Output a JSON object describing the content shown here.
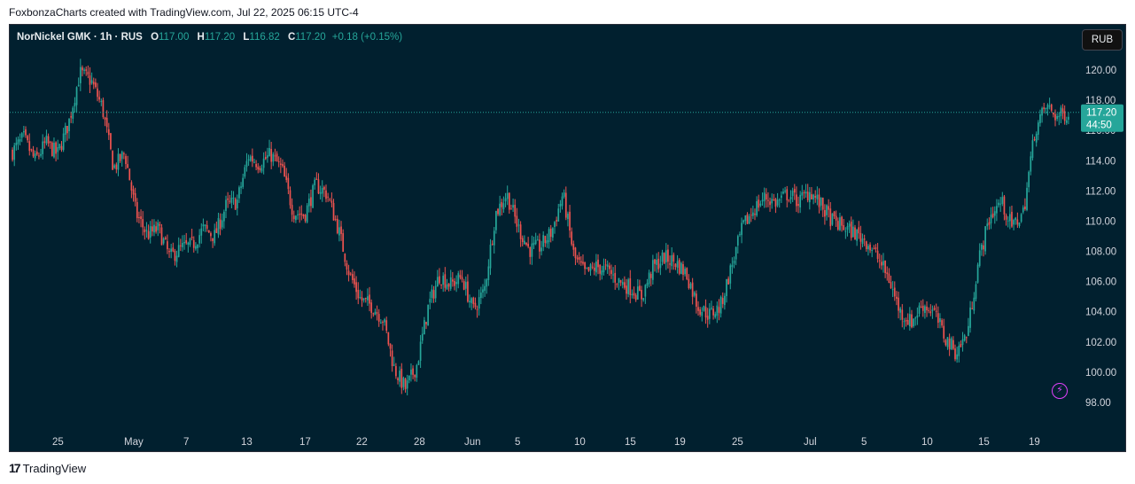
{
  "attribution": "FoxbonzaCharts created with TradingView.com, Jul 22, 2025 06:15 UTC-4",
  "legend": {
    "symbol": "NorNickel GMK · 1h · RUS",
    "open_label": "O",
    "open": "117.00",
    "high_label": "H",
    "high": "117.20",
    "low_label": "L",
    "low": "116.82",
    "close_label": "C",
    "close": "117.20",
    "change": "+0.18 (+0.15%)"
  },
  "currency_button": "RUB",
  "last_price": {
    "price": "117.20",
    "countdown": "44:50"
  },
  "footer": {
    "logo_mark": "17",
    "brand": "TradingView"
  },
  "colors": {
    "up": "#26a69a",
    "down": "#ef5350",
    "background": "#01202f",
    "price_tag": "#26a69a",
    "bolt": "#e040fb"
  },
  "chart_data": {
    "type": "candlestick",
    "timeframe": "1h",
    "currency": "RUB",
    "ylim": [
      97,
      121.5
    ],
    "y_ticks": [
      "98.00",
      "100.00",
      "102.00",
      "104.00",
      "106.00",
      "108.00",
      "110.00",
      "112.00",
      "114.00",
      "116.00",
      "118.00",
      "120.00"
    ],
    "x_ticks": [
      "25",
      "May",
      "7",
      "13",
      "17",
      "22",
      "28",
      "Jun",
      "5",
      "10",
      "15",
      "19",
      "25",
      "Jul",
      "5",
      "10",
      "15",
      "19"
    ],
    "last_price": 117.2,
    "series": [
      {
        "x": "Apr 21",
        "y": 114.6
      },
      {
        "x": "Apr 22",
        "y": 115.5
      },
      {
        "x": "Apr 23",
        "y": 114.0
      },
      {
        "x": "Apr 24",
        "y": 115.2
      },
      {
        "x": "Apr 25",
        "y": 114.4
      },
      {
        "x": "Apr 26",
        "y": 116.5
      },
      {
        "x": "Apr 27",
        "y": 119.8
      },
      {
        "x": "Apr 28",
        "y": 119.3
      },
      {
        "x": "Apr 29",
        "y": 117.5
      },
      {
        "x": "Apr 30",
        "y": 113.5
      },
      {
        "x": "May 1",
        "y": 114.5
      },
      {
        "x": "May 2",
        "y": 110.5
      },
      {
        "x": "May 3",
        "y": 109.1
      },
      {
        "x": "May 4",
        "y": 109.5
      },
      {
        "x": "May 5",
        "y": 107.6
      },
      {
        "x": "May 6",
        "y": 108.2
      },
      {
        "x": "May 7",
        "y": 108.4
      },
      {
        "x": "May 8",
        "y": 109.5
      },
      {
        "x": "May 9",
        "y": 109.0
      },
      {
        "x": "May 10",
        "y": 111.0
      },
      {
        "x": "May 11",
        "y": 111.3
      },
      {
        "x": "May 12",
        "y": 114.3
      },
      {
        "x": "May 13",
        "y": 113.8
      },
      {
        "x": "May 14",
        "y": 114.4
      },
      {
        "x": "May 15",
        "y": 113.4
      },
      {
        "x": "May 16",
        "y": 110.6
      },
      {
        "x": "May 17",
        "y": 110.4
      },
      {
        "x": "May 18",
        "y": 112.4
      },
      {
        "x": "May 19",
        "y": 111.8
      },
      {
        "x": "May 20",
        "y": 109.5
      },
      {
        "x": "May 21",
        "y": 106.5
      },
      {
        "x": "May 22",
        "y": 104.8
      },
      {
        "x": "May 23",
        "y": 104.4
      },
      {
        "x": "May 24",
        "y": 103.5
      },
      {
        "x": "May 25",
        "y": 100.2
      },
      {
        "x": "May 26",
        "y": 98.9
      },
      {
        "x": "May 27",
        "y": 100.5
      },
      {
        "x": "May 28",
        "y": 104.3
      },
      {
        "x": "May 29",
        "y": 106.4
      },
      {
        "x": "May 30",
        "y": 105.8
      },
      {
        "x": "May 31",
        "y": 106.3
      },
      {
        "x": "Jun 1",
        "y": 104.1
      },
      {
        "x": "Jun 2",
        "y": 105.4
      },
      {
        "x": "Jun 3",
        "y": 110.5
      },
      {
        "x": "Jun 4",
        "y": 111.8
      },
      {
        "x": "Jun 5",
        "y": 109.6
      },
      {
        "x": "Jun 6",
        "y": 108.1
      },
      {
        "x": "Jun 7",
        "y": 108.3
      },
      {
        "x": "Jun 8",
        "y": 109.3
      },
      {
        "x": "Jun 9",
        "y": 111.8
      },
      {
        "x": "Jun 10",
        "y": 107.6
      },
      {
        "x": "Jun 11",
        "y": 106.5
      },
      {
        "x": "Jun 12",
        "y": 107.0
      },
      {
        "x": "Jun 13",
        "y": 106.7
      },
      {
        "x": "Jun 14",
        "y": 106.0
      },
      {
        "x": "Jun 15",
        "y": 105.6
      },
      {
        "x": "Jun 16",
        "y": 105.0
      },
      {
        "x": "Jun 17",
        "y": 106.9
      },
      {
        "x": "Jun 18",
        "y": 107.6
      },
      {
        "x": "Jun 19",
        "y": 107.3
      },
      {
        "x": "Jun 20",
        "y": 106.5
      },
      {
        "x": "Jun 21",
        "y": 104.4
      },
      {
        "x": "Jun 22",
        "y": 103.8
      },
      {
        "x": "Jun 23",
        "y": 104.3
      },
      {
        "x": "Jun 24",
        "y": 107.0
      },
      {
        "x": "Jun 25",
        "y": 109.6
      },
      {
        "x": "Jun 26",
        "y": 110.8
      },
      {
        "x": "Jun 27",
        "y": 111.6
      },
      {
        "x": "Jun 28",
        "y": 111.2
      },
      {
        "x": "Jun 29",
        "y": 111.8
      },
      {
        "x": "Jun 30",
        "y": 111.3
      },
      {
        "x": "Jul 1",
        "y": 112.0
      },
      {
        "x": "Jul 2",
        "y": 111.0
      },
      {
        "x": "Jul 3",
        "y": 110.0
      },
      {
        "x": "Jul 4",
        "y": 109.6
      },
      {
        "x": "Jul 5",
        "y": 109.2
      },
      {
        "x": "Jul 6",
        "y": 108.7
      },
      {
        "x": "Jul 7",
        "y": 107.6
      },
      {
        "x": "Jul 8",
        "y": 106.2
      },
      {
        "x": "Jul 9",
        "y": 104.0
      },
      {
        "x": "Jul 10",
        "y": 103.3
      },
      {
        "x": "Jul 11",
        "y": 104.5
      },
      {
        "x": "Jul 12",
        "y": 104.0
      },
      {
        "x": "Jul 13",
        "y": 102.3
      },
      {
        "x": "Jul 14",
        "y": 101.3
      },
      {
        "x": "Jul 15",
        "y": 102.6
      },
      {
        "x": "Jul 16",
        "y": 107.4
      },
      {
        "x": "Jul 17",
        "y": 110.3
      },
      {
        "x": "Jul 18",
        "y": 111.3
      },
      {
        "x": "Jul 19",
        "y": 109.6
      },
      {
        "x": "Jul 20",
        "y": 110.6
      },
      {
        "x": "Jul 21",
        "y": 116.0
      },
      {
        "x": "Jul 22",
        "y": 117.6
      },
      {
        "x": "Jul 22 late",
        "y": 116.9
      },
      {
        "x": "Jul 22 last",
        "y": 117.2
      }
    ],
    "grid": false,
    "legend_position": "top-left"
  }
}
